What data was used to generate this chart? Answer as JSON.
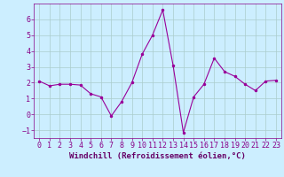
{
  "x": [
    0,
    1,
    2,
    3,
    4,
    5,
    6,
    7,
    8,
    9,
    10,
    11,
    12,
    13,
    14,
    15,
    16,
    17,
    18,
    19,
    20,
    21,
    22,
    23
  ],
  "y": [
    2.1,
    1.8,
    1.9,
    1.9,
    1.85,
    1.3,
    1.1,
    -0.1,
    0.8,
    2.0,
    3.8,
    5.0,
    6.6,
    3.1,
    -1.15,
    1.1,
    1.9,
    3.55,
    2.7,
    2.4,
    1.9,
    1.5,
    2.1,
    2.15
  ],
  "line_color": "#990099",
  "marker": ".",
  "marker_size": 3,
  "xlabel": "Windchill (Refroidissement éolien,°C)",
  "xlabel_color": "#660066",
  "xlim": [
    -0.5,
    23.5
  ],
  "ylim": [
    -1.5,
    7.0
  ],
  "yticks": [
    -1,
    0,
    1,
    2,
    3,
    4,
    5,
    6
  ],
  "xticks": [
    0,
    1,
    2,
    3,
    4,
    5,
    6,
    7,
    8,
    9,
    10,
    11,
    12,
    13,
    14,
    15,
    16,
    17,
    18,
    19,
    20,
    21,
    22,
    23
  ],
  "bg_color": "#cceeff",
  "grid_color": "#aacccc",
  "line_width": 0.8,
  "tick_color": "#880088",
  "axis_color": "#880088",
  "label_fontsize": 6.5,
  "tick_fontsize": 6.0
}
